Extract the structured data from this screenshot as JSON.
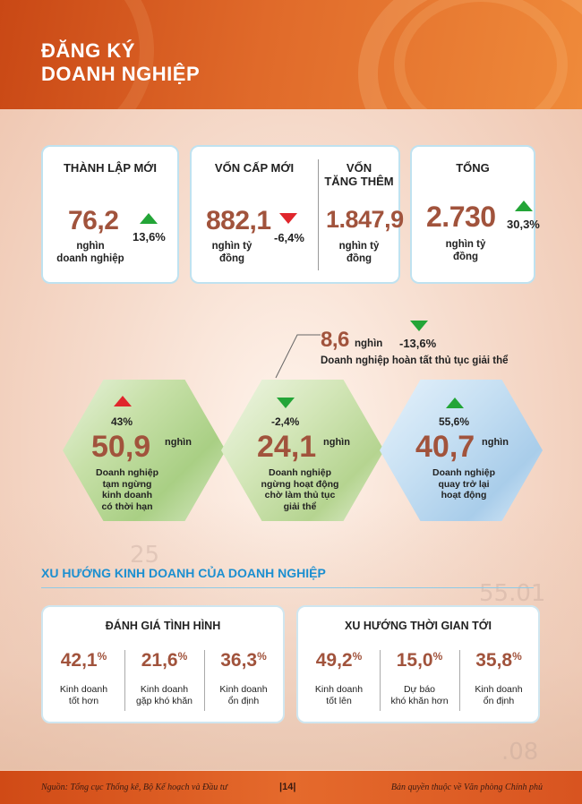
{
  "header": {
    "title_line1": "ĐĂNG KÝ",
    "title_line2": "DOANH NGHIỆP"
  },
  "colors": {
    "accent": "#a1533c",
    "up": "#23a537",
    "down": "#e0262c",
    "section": "#1c8fd0",
    "header": "#e06a2a"
  },
  "cards": {
    "thanh_lap": {
      "title": "THÀNH LẬP MỚI",
      "value": "76,2",
      "unit_line1": "nghìn",
      "unit_line2": "doanh nghiệp",
      "change": "13,6%",
      "direction": "up"
    },
    "von_cap_moi": {
      "title": "VỐN CẤP MỚI",
      "value": "882,1",
      "unit_line1": "nghìn tỷ",
      "unit_line2": "đồng",
      "change": "-6,4%",
      "direction": "down"
    },
    "von_tang_them": {
      "title_line1": "VỐN",
      "title_line2": "TĂNG THÊM",
      "value": "1.847,9",
      "unit_line1": "nghìn tỷ",
      "unit_line2": "đồng"
    },
    "tong": {
      "title": "TỔNG",
      "value": "2.730",
      "unit_line1": "nghìn tỷ",
      "unit_line2": "đồng",
      "change": "30,3%",
      "direction": "up"
    }
  },
  "dissolved": {
    "value": "8,6",
    "unit": "nghìn",
    "change": "-13,6%",
    "direction": "down",
    "label": "Doanh nghiệp hoàn tất thủ tục giải thể"
  },
  "hexes": [
    {
      "change": "43%",
      "direction": "up",
      "value": "50,9",
      "unit": "nghìn",
      "label_lines": [
        "Doanh nghiệp",
        "tạm ngừng",
        "kinh doanh",
        "có thời hạn"
      ]
    },
    {
      "change": "-2,4%",
      "direction": "down",
      "value": "24,1",
      "unit": "nghìn",
      "label_lines": [
        "Doanh nghiệp",
        "ngừng hoạt động",
        "chờ làm thủ tục",
        "giải thể"
      ]
    },
    {
      "change": "55,6%",
      "direction": "up",
      "value": "40,7",
      "unit": "nghìn",
      "label_lines": [
        "Doanh nghiệp",
        "quay trở lại",
        "hoạt động"
      ]
    }
  ],
  "trend": {
    "section_title": "XU HƯỚNG KINH DOANH CỦA DOANH NGHIỆP",
    "current": {
      "title": "ĐÁNH GIÁ TÌNH HÌNH",
      "items": [
        {
          "value": "42,1",
          "pct": "%",
          "label_lines": [
            "Kinh doanh",
            "tốt hơn"
          ]
        },
        {
          "value": "21,6",
          "pct": "%",
          "label_lines": [
            "Kinh doanh",
            "gặp khó khăn"
          ]
        },
        {
          "value": "36,3",
          "pct": "%",
          "label_lines": [
            "Kinh doanh",
            "ổn định"
          ]
        }
      ]
    },
    "future": {
      "title": "XU HƯỚNG THỜI GIAN TỚI",
      "items": [
        {
          "value": "49,2",
          "pct": "%",
          "label_lines": [
            "Kinh doanh",
            "tốt lên"
          ]
        },
        {
          "value": "15,0",
          "pct": "%",
          "label_lines": [
            "Dự báo",
            "khó khăn hơn"
          ]
        },
        {
          "value": "35,8",
          "pct": "%",
          "label_lines": [
            "Kinh doanh",
            "ổn định"
          ]
        }
      ]
    }
  },
  "footer": {
    "source": "Nguồn: Tổng cục Thống kê, Bộ Kế hoạch và Đầu tư",
    "page": "|14|",
    "copyright": "Bản quyền thuộc về Văn phòng Chính phủ"
  }
}
